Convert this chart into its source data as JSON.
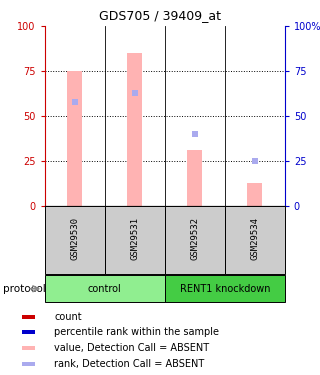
{
  "title": "GDS705 / 39409_at",
  "samples": [
    "GSM29530",
    "GSM29531",
    "GSM29532",
    "GSM29534"
  ],
  "bar_values_absent": [
    75,
    85,
    31,
    13
  ],
  "rank_values_absent": [
    58,
    63,
    40,
    25
  ],
  "ylim": [
    0,
    100
  ],
  "bar_color_absent": "#ffb3b3",
  "rank_color_absent": "#aaaaee",
  "count_color": "#cc0000",
  "rank_color_solid": "#0000cc",
  "dotted_lines": [
    25,
    50,
    75
  ],
  "groups": [
    {
      "label": "control",
      "samples": [
        0,
        1
      ],
      "color": "#90ee90"
    },
    {
      "label": "RENT1 knockdown",
      "samples": [
        2,
        3
      ],
      "color": "#44cc44"
    }
  ],
  "protocol_label": "protocol",
  "legend_items": [
    {
      "color": "#cc0000",
      "label": "count"
    },
    {
      "color": "#0000cc",
      "label": "percentile rank within the sample"
    },
    {
      "color": "#ffb3b3",
      "label": "value, Detection Call = ABSENT"
    },
    {
      "color": "#aaaaee",
      "label": "rank, Detection Call = ABSENT"
    }
  ],
  "left_axis_color": "#cc0000",
  "right_axis_color": "#0000cc",
  "bar_width": 0.25,
  "marker_size": 5
}
